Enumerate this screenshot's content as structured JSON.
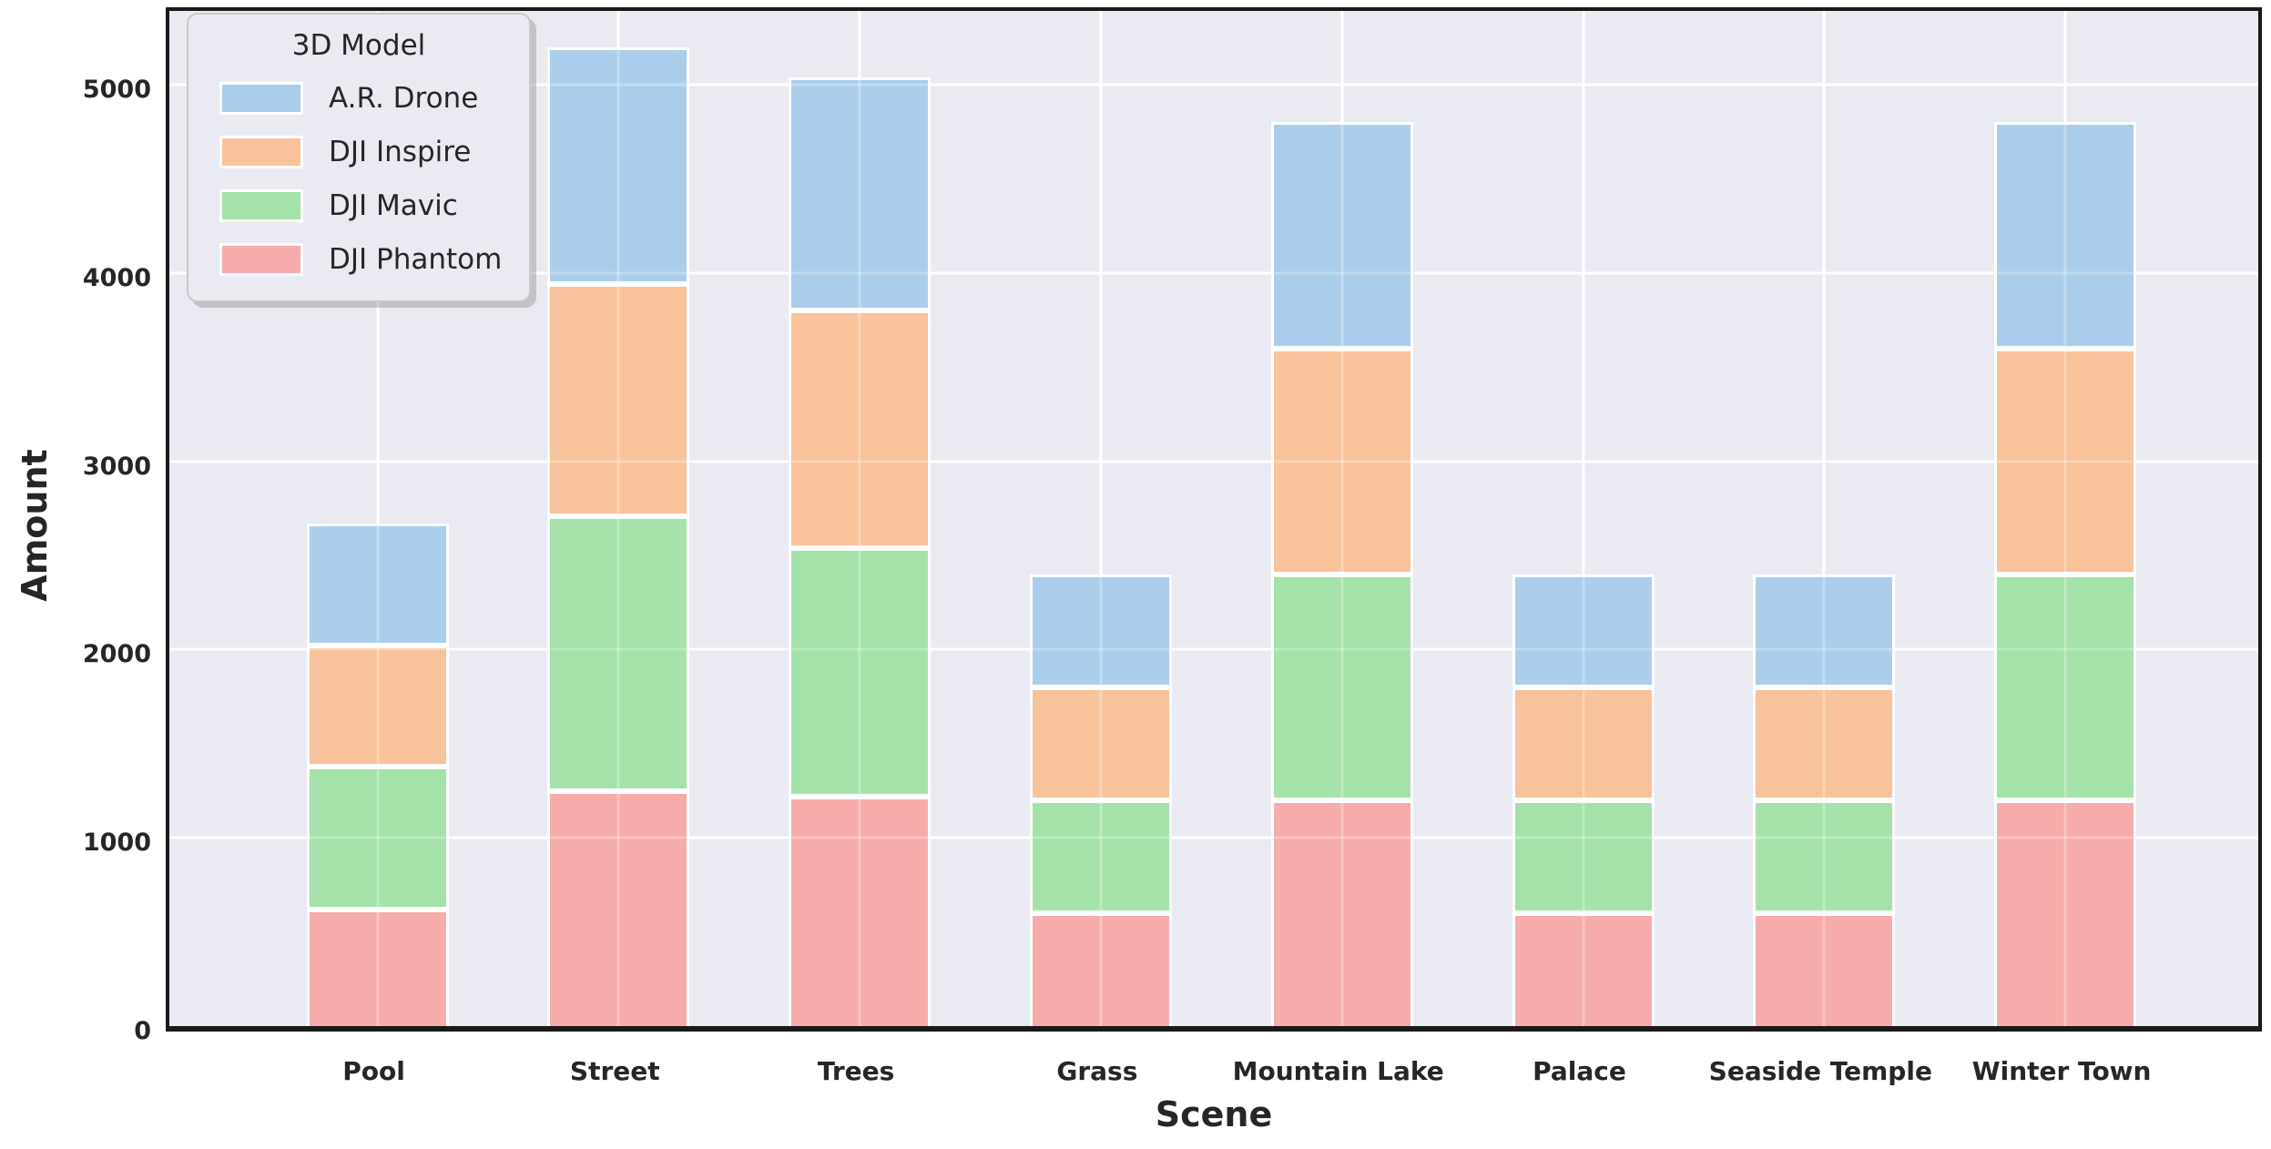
{
  "chart_data": {
    "type": "bar",
    "stacked": true,
    "title": "",
    "xlabel": "Scene",
    "ylabel": "Amount",
    "categories": [
      "Pool",
      "Street",
      "Trees",
      "Grass",
      "Mountain Lake",
      "Palace",
      "Seaside Temple",
      "Winter Town"
    ],
    "series": [
      {
        "name": "DJI Phantom",
        "color": "#f6acaa",
        "values": [
          620,
          1250,
          1220,
          600,
          1200,
          600,
          600,
          1200
        ]
      },
      {
        "name": "DJI Mavic",
        "color": "#a4e2aa",
        "values": [
          760,
          1460,
          1320,
          600,
          1200,
          600,
          600,
          1200
        ]
      },
      {
        "name": "DJI Inspire",
        "color": "#f8c29a",
        "values": [
          640,
          1230,
          1260,
          600,
          1200,
          600,
          600,
          1200
        ]
      },
      {
        "name": "A.R. Drone",
        "color": "#abcdec",
        "values": [
          650,
          1260,
          1240,
          600,
          1200,
          600,
          600,
          1200
        ]
      }
    ],
    "stack_order": "bottom-to-top",
    "totals": [
      2670,
      5200,
      5040,
      2400,
      4800,
      2400,
      2400,
      4800
    ],
    "ylim": [
      0,
      5440
    ],
    "yticks": [
      0,
      1000,
      2000,
      3000,
      4000,
      5000
    ],
    "grid": true,
    "legend": {
      "title": "3D Model",
      "position": "upper-left",
      "entries": [
        "A.R. Drone",
        "DJI Inspire",
        "DJI Mavic",
        "DJI Phantom"
      ],
      "entry_colors": [
        "#abcdec",
        "#f8c29a",
        "#a4e2aa",
        "#f6acaa"
      ]
    },
    "colors": {
      "plot_background": "#eaeaf2",
      "figure_background": "#ffffff",
      "gridline": "#ffffff",
      "frame": "#1a1a1a",
      "text": "#262626"
    }
  }
}
